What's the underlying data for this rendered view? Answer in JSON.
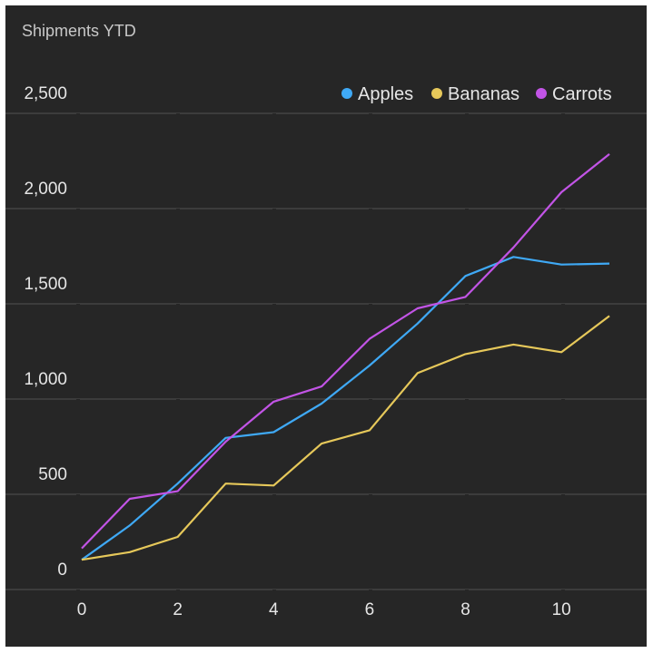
{
  "chart_data": {
    "type": "line",
    "title": "Shipments YTD",
    "x": [
      0,
      1,
      2,
      3,
      4,
      5,
      6,
      7,
      8,
      9,
      10,
      11
    ],
    "xticks": [
      0,
      2,
      4,
      6,
      8,
      10
    ],
    "yticks": [
      0,
      500,
      1000,
      1500,
      2000,
      2500
    ],
    "ytick_labels": [
      "0",
      "500",
      "1,000",
      "1,500",
      "2,000",
      "2,500"
    ],
    "xlim": [
      0,
      11
    ],
    "ylim": [
      0,
      2500
    ],
    "grid": true,
    "legend_position": "top-right",
    "series": [
      {
        "name": "Apples",
        "color": "#3fa9f5",
        "values": [
          80,
          260,
          480,
          720,
          750,
          900,
          1100,
          1320,
          1570,
          1670,
          1630,
          1635
        ]
      },
      {
        "name": "Bananas",
        "color": "#e6c85a",
        "values": [
          80,
          120,
          200,
          480,
          470,
          690,
          760,
          1060,
          1160,
          1210,
          1170,
          1360
        ]
      },
      {
        "name": "Carrots",
        "color": "#c254e6",
        "values": [
          140,
          400,
          440,
          700,
          910,
          990,
          1240,
          1400,
          1460,
          1720,
          2010,
          2210
        ]
      }
    ]
  }
}
